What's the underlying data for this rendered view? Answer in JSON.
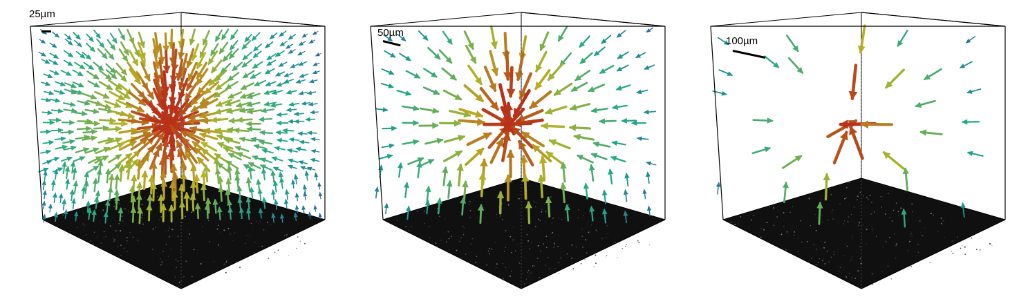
{
  "panels": [
    {
      "id": "panel-1",
      "scale_label": "25µm",
      "arrow_density": "dense"
    },
    {
      "id": "panel-2",
      "scale_label": "50µm",
      "arrow_density": "medium"
    },
    {
      "id": "panel-3",
      "scale_label": "100µm",
      "arrow_density": "sparse"
    }
  ],
  "colors": {
    "low": "#2d58a8",
    "mid": "#1ea88a",
    "high": "#b7b424",
    "max": "#b8321a",
    "floor": "#101010",
    "edge": "#000000"
  }
}
